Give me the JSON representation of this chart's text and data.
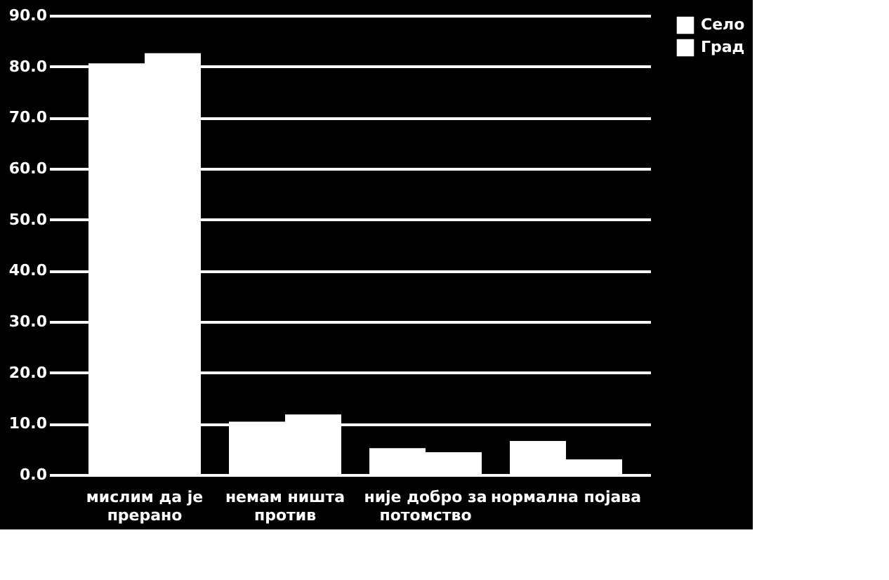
{
  "chart_data": {
    "type": "bar",
    "categories": [
      [
        "мислим да је",
        "прерано"
      ],
      [
        "немам ништа",
        "против"
      ],
      [
        "није добро за",
        "потомство"
      ],
      [
        "нормална појава"
      ]
    ],
    "series": [
      {
        "name": "Село",
        "color": "#ffffff",
        "values": [
          80.6,
          10.4,
          5.2,
          6.6
        ]
      },
      {
        "name": "Град",
        "color": "#ffffff",
        "values": [
          82.6,
          11.8,
          4.4,
          3.0
        ]
      }
    ],
    "ylim": [
      0,
      90
    ],
    "yticks": [
      {
        "value": 0,
        "label": "0.0"
      },
      {
        "value": 10,
        "label": "10.0"
      },
      {
        "value": 20,
        "label": "20.0"
      },
      {
        "value": 30,
        "label": "30.0"
      },
      {
        "value": 40,
        "label": "40.0"
      },
      {
        "value": 50,
        "label": "50.0"
      },
      {
        "value": 60,
        "label": "60.0"
      },
      {
        "value": 70,
        "label": "70.0"
      },
      {
        "value": 80,
        "label": "80.0"
      },
      {
        "value": 90,
        "label": "90.0"
      }
    ],
    "grid": "y",
    "legend": "right"
  }
}
